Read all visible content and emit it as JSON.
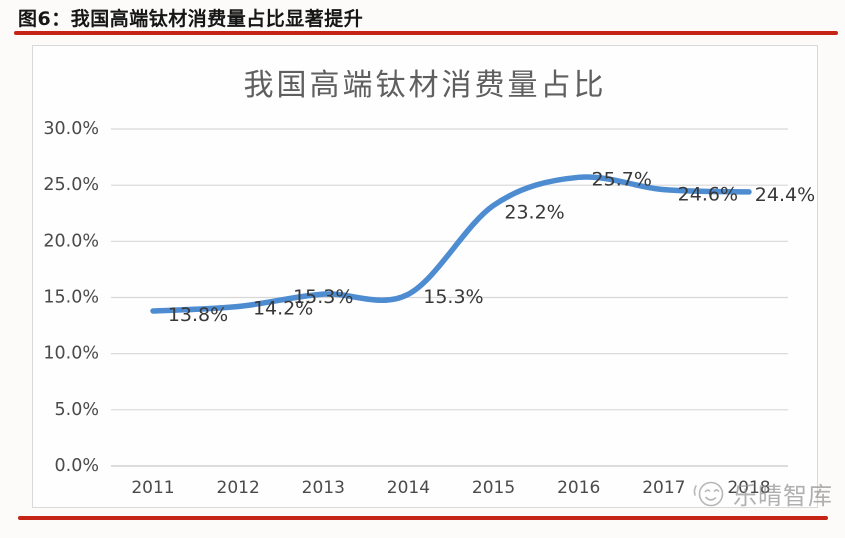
{
  "header": {
    "figure_label": "图6：我国高端钛材消费量占比显著提升"
  },
  "watermark": {
    "icon": "smiley-face-icon",
    "text": "乐晴智库"
  },
  "colors": {
    "accent_red": "#c52417",
    "line_blue": "#4e8cd1",
    "grid_gray": "#d7d7d7",
    "axis_line_gray": "#c8c8c8",
    "title_gray": "#5f5f5f",
    "axis_text_gray": "#4a4a4a",
    "data_label_dark": "#383838",
    "card_border": "#d9d9d9",
    "watermark_gray": "#a9a9a9"
  },
  "chart_data": {
    "type": "line",
    "title": "我国高端钛材消费量占比",
    "categories": [
      "2011",
      "2012",
      "2013",
      "2014",
      "2015",
      "2016",
      "2017",
      "2018"
    ],
    "values": [
      13.8,
      14.2,
      15.3,
      15.3,
      23.2,
      25.7,
      24.6,
      24.4
    ],
    "data_labels": [
      "13.8%",
      "14.2%",
      "15.3%",
      "15.3%",
      "23.2%",
      "25.7%",
      "24.6%",
      "24.4%"
    ],
    "y_ticks": [
      "30.0%",
      "25.0%",
      "20.0%",
      "15.0%",
      "10.0%",
      "5.0%",
      "0.0%"
    ],
    "ylim": [
      0,
      30
    ],
    "y_tick_step": 5,
    "xlabel": "",
    "ylabel": "",
    "grid": true,
    "legend": "none",
    "smooth": true
  }
}
